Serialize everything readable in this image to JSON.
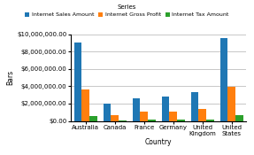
{
  "chart_data": {
    "type": "bar",
    "categories": [
      "Australia",
      "Canada",
      "France",
      "Germany",
      "United\nKingdom",
      "United\nStates"
    ],
    "series": [
      {
        "name": "Internet Sales Amount",
        "values": [
          9000000,
          2000000,
          2600000,
          2800000,
          3300000,
          9500000
        ]
      },
      {
        "name": "Internet Gross Profit",
        "values": [
          3600000,
          700000,
          1100000,
          1100000,
          1400000,
          3900000
        ]
      },
      {
        "name": "Internet Tax Amount",
        "values": [
          600000,
          80000,
          200000,
          200000,
          200000,
          700000
        ]
      }
    ],
    "xlabel": "Country",
    "ylabel": "Bars",
    "ylim": [
      0,
      10000000
    ],
    "yticks": [
      {
        "value": 0,
        "label": "$0.00"
      },
      {
        "value": 2000000,
        "label": "$2,000,000.00"
      },
      {
        "value": 4000000,
        "label": "$4,000,000.00"
      },
      {
        "value": 6000000,
        "label": "$6,000,000.00"
      },
      {
        "value": 8000000,
        "label": "$8,000,000.00"
      },
      {
        "value": 10000000,
        "label": "$10,000,000.00"
      }
    ],
    "grid": true,
    "legend": "upper center",
    "legend_title": "Series"
  }
}
